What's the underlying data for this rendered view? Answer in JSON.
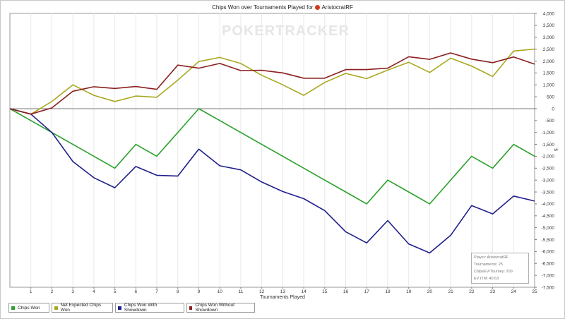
{
  "chart_data": {
    "type": "line",
    "title_prefix": "Chips Won over Tournaments Played for",
    "player": "AristocratRF",
    "watermark": "POKERTRACKER",
    "xlabel": "Tournaments Played",
    "ylabel": "$",
    "x": [
      0,
      1,
      2,
      3,
      4,
      5,
      6,
      7,
      8,
      9,
      10,
      11,
      12,
      13,
      14,
      15,
      16,
      17,
      18,
      19,
      20,
      21,
      22,
      23,
      24,
      25
    ],
    "xlim": [
      0,
      25
    ],
    "ylim": [
      -7500,
      4000
    ],
    "ytick_step": 500,
    "yticks": [
      "4,000",
      "3,500",
      "3,000",
      "2,500",
      "2,000",
      "1,500",
      "1,000",
      "500",
      "0",
      "-500",
      "-1,000",
      "-1,500",
      "-2,000",
      "-2,500",
      "-3,000",
      "-3,500",
      "-4,000",
      "-4,500",
      "-5,000",
      "-5,500",
      "-6,000",
      "-6,500",
      "-7,000",
      "-7,500"
    ],
    "grid": "vertical",
    "legend_position": "bottom-left",
    "series": [
      {
        "name": "Chips Won",
        "color": "#2aa02a",
        "values": [
          0,
          -500,
          -1000,
          -1500,
          -2000,
          -2500,
          -1500,
          -2000,
          -1000,
          0,
          -500,
          -1000,
          -1500,
          -2000,
          -2500,
          -3000,
          -3500,
          -4000,
          -3000,
          -3500,
          -4000,
          -3000,
          -2000,
          -2500,
          -1500,
          -2000
        ]
      },
      {
        "name": "Net Expected Chips Won",
        "color": "#a8a820",
        "values": [
          0,
          -230,
          300,
          1000,
          560,
          300,
          530,
          480,
          1200,
          1980,
          2150,
          1900,
          1400,
          1000,
          560,
          1100,
          1480,
          1260,
          1620,
          1950,
          1520,
          2120,
          1790,
          1350,
          2420,
          2500
        ]
      },
      {
        "name": "Chips Won With Showdown",
        "color": "#1f1f8c",
        "values": [
          0,
          -230,
          -1000,
          -2220,
          -2900,
          -3320,
          -2430,
          -2800,
          -2830,
          -1700,
          -2400,
          -2570,
          -3080,
          -3480,
          -3780,
          -4280,
          -5170,
          -5640,
          -4700,
          -5680,
          -6060,
          -5320,
          -4070,
          -4420,
          -3670,
          -3880
        ]
      },
      {
        "name": "Chips Won Without Showdown",
        "color": "#8c1f1f",
        "values": [
          0,
          -230,
          30,
          730,
          920,
          850,
          930,
          810,
          1830,
          1700,
          1900,
          1600,
          1610,
          1500,
          1280,
          1280,
          1640,
          1640,
          1700,
          2180,
          2070,
          2340,
          2080,
          1930,
          2170,
          1870
        ]
      }
    ]
  },
  "info_box": {
    "player": "Player: AristocratRF",
    "tournaments": "Tournaments: 25",
    "chipsev": "ChipsEV/Tourney: 200",
    "evitm": "EV ITM: 40.63"
  }
}
